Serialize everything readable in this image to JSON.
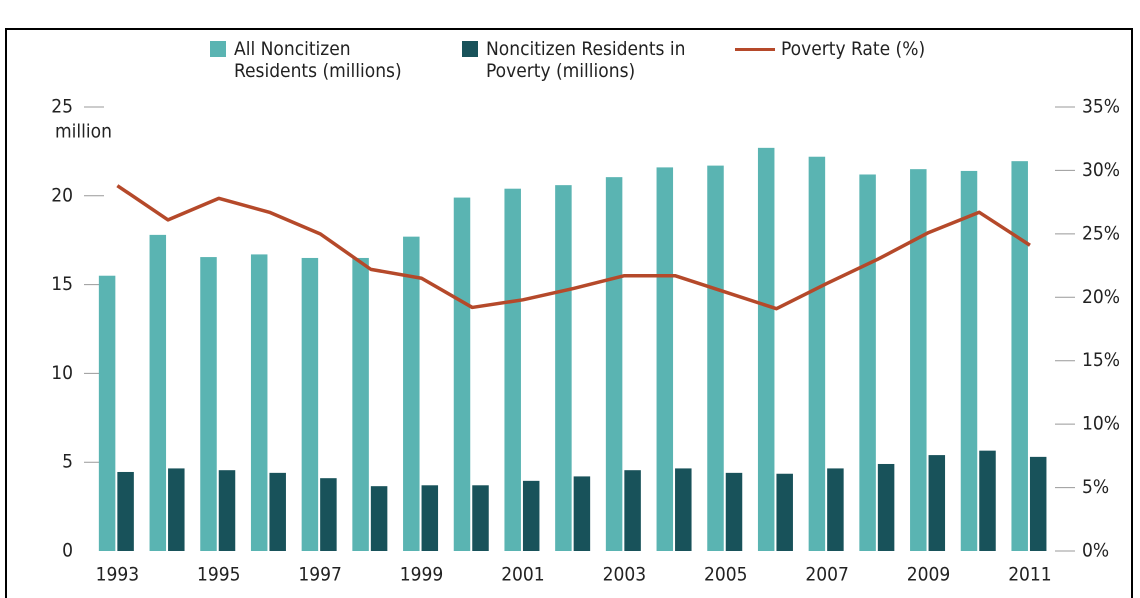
{
  "chart_data": {
    "type": "bar",
    "categories": [
      "1993",
      null,
      "1995",
      null,
      "1997",
      null,
      "1999",
      null,
      "2001",
      null,
      "2003",
      null,
      "2005",
      null,
      "2007",
      null,
      "2009",
      null,
      "2011"
    ],
    "series": [
      {
        "name": "All Noncitizen Residents (millions)",
        "color": "#5ab4b2",
        "values": [
          15.5,
          17.8,
          16.55,
          16.7,
          16.5,
          16.5,
          17.7,
          19.9,
          20.4,
          20.6,
          21.05,
          21.6,
          21.7,
          22.7,
          22.2,
          21.2,
          21.5,
          21.4,
          21.95
        ]
      },
      {
        "name": "Noncitizen Residents in Poverty (millions)",
        "color": "#18525a",
        "values": [
          4.45,
          4.65,
          4.55,
          4.4,
          4.1,
          3.65,
          3.7,
          3.7,
          3.95,
          4.2,
          4.55,
          4.65,
          4.4,
          4.35,
          4.65,
          4.9,
          5.4,
          5.65,
          5.3
        ]
      },
      {
        "name": "Poverty Rate (%)",
        "color": "#b5492a",
        "type": "line",
        "axis": "y2",
        "values": [
          28.8,
          26.1,
          27.8,
          26.7,
          25.0,
          22.2,
          21.5,
          19.2,
          19.8,
          20.7,
          21.7,
          21.7,
          20.4,
          19.1,
          21.1,
          23.0,
          25.1,
          26.7,
          24.1
        ]
      }
    ],
    "y_label": "million",
    "ylim": [
      0,
      25
    ],
    "yticks": [
      0,
      5,
      10,
      15,
      20,
      25
    ],
    "y2lim": [
      0,
      35
    ],
    "y2ticks": [
      {
        "value": 0,
        "label": "0%"
      },
      {
        "value": 5,
        "label": "5%"
      },
      {
        "value": 10,
        "label": "10%"
      },
      {
        "value": 15,
        "label": "15%"
      },
      {
        "value": 20,
        "label": "20%"
      },
      {
        "value": 25,
        "label": "25%"
      },
      {
        "value": 30,
        "label": "30%"
      },
      {
        "value": 35,
        "label": "35%"
      }
    ],
    "grid": false
  }
}
